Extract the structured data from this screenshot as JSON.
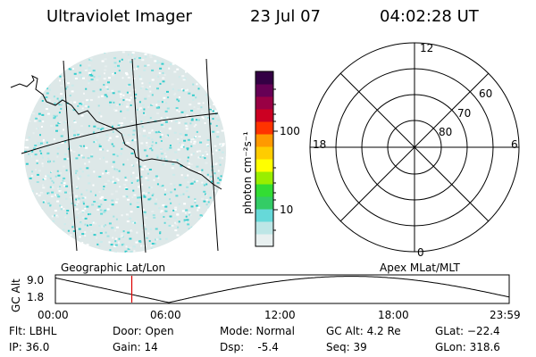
{
  "header": {
    "title": "Ultraviolet Imager",
    "date": "23 Jul 07",
    "time": "04:02:28 UT"
  },
  "colorbar": {
    "unit_label": "photon cm⁻²s⁻¹",
    "ticks": [
      "100",
      "10"
    ],
    "colors": [
      "#e8f0f0",
      "#bde6e6",
      "#66d9d9",
      "#33cc66",
      "#33dd33",
      "#99ee00",
      "#ffff00",
      "#ffcc00",
      "#ff9900",
      "#ff3300",
      "#cc0022",
      "#990044",
      "#660055",
      "#330044"
    ]
  },
  "left_panel": {
    "caption": "Geographic Lat/Lon"
  },
  "right_panel": {
    "caption": "Apex MLat/MLT",
    "mlt_labels": {
      "top": "12",
      "left": "18",
      "right": "6",
      "bottom": "0"
    },
    "mlat_labels": [
      "60",
      "70",
      "80"
    ]
  },
  "timeline": {
    "ylabel": "GC Alt",
    "y_ticks": [
      "9.0",
      "1.8"
    ],
    "x_ticks": [
      "00:00",
      "06:00",
      "12:00",
      "18:00",
      "23:59"
    ],
    "current_time_hours": 4.04,
    "marker_color": "#dd0000"
  },
  "info": {
    "flt": "Flt: LBHL",
    "ip": "IP: 36.0",
    "door": "Door: Open",
    "gain": "Gain: 14",
    "mode": "Mode: Normal",
    "dsp": "Dsp:    -5.4",
    "gc_alt": "GC Alt: 4.2 Re",
    "seq": "Seq: 39",
    "glat": "GLat: −22.4",
    "glon": "GLon: 318.6"
  }
}
